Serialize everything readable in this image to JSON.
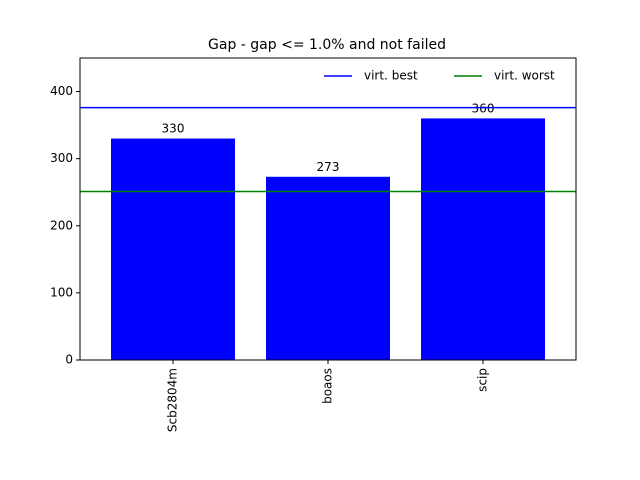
{
  "chart_data": {
    "type": "bar",
    "title": "Gap - gap <= 1.0% and not failed",
    "xlabel": "",
    "ylabel": "",
    "categories": [
      "Scb2804m",
      "boaos",
      "scip"
    ],
    "values": [
      330,
      273,
      360
    ],
    "data_labels": [
      "330",
      "273",
      "360"
    ],
    "bar_color": "#0000ff",
    "ylim": [
      0,
      450
    ],
    "yticks": [
      0,
      100,
      200,
      300,
      400
    ],
    "reference_lines": [
      {
        "name": "virt. best",
        "value": 376,
        "color": "#0000ff"
      },
      {
        "name": "virt. worst",
        "value": 251,
        "color": "#008000"
      }
    ],
    "legend": {
      "placement": "top-right",
      "entries": [
        "virt. best",
        "virt. worst"
      ]
    },
    "grid": false
  }
}
